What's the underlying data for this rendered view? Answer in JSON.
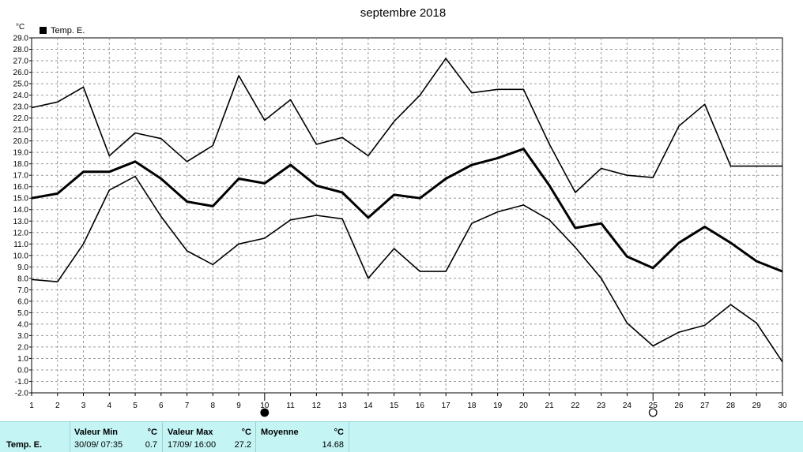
{
  "chart_data": {
    "type": "line",
    "title": "septembre 2018",
    "y_unit": "°C",
    "ylim": [
      -2.0,
      29.0
    ],
    "y_step": 1.0,
    "grid": true,
    "legend_position": "top-left",
    "legend": [
      "Temp. E."
    ],
    "x": [
      1,
      2,
      3,
      4,
      5,
      6,
      7,
      8,
      9,
      10,
      11,
      12,
      13,
      14,
      15,
      16,
      17,
      18,
      19,
      20,
      21,
      22,
      23,
      24,
      25,
      26,
      27,
      28,
      29,
      30
    ],
    "series": [
      {
        "role": "max",
        "values": [
          22.9,
          23.4,
          24.7,
          18.7,
          20.7,
          20.2,
          18.2,
          19.6,
          25.7,
          21.8,
          23.6,
          19.7,
          20.3,
          18.7,
          21.7,
          24.0,
          27.2,
          24.2,
          24.5,
          24.5,
          19.7,
          15.5,
          17.6,
          17.0,
          16.8,
          21.3,
          23.2,
          17.8,
          17.8,
          17.8
        ]
      },
      {
        "role": "mean",
        "name": "Temp. E.",
        "values": [
          15.0,
          15.4,
          17.3,
          17.3,
          18.2,
          16.7,
          14.7,
          14.3,
          16.7,
          16.3,
          17.9,
          16.1,
          15.5,
          13.3,
          15.3,
          15.0,
          16.7,
          17.9,
          18.5,
          19.3,
          16.1,
          12.4,
          12.8,
          9.9,
          8.9,
          11.1,
          12.5,
          11.1,
          9.5,
          8.6
        ]
      },
      {
        "role": "min",
        "values": [
          7.9,
          7.7,
          11.0,
          15.7,
          16.9,
          13.4,
          10.4,
          9.2,
          11.0,
          11.5,
          13.1,
          13.5,
          13.2,
          8.0,
          10.6,
          8.6,
          8.6,
          12.8,
          13.8,
          14.4,
          13.1,
          10.7,
          8.0,
          4.1,
          2.1,
          3.3,
          3.9,
          5.7,
          4.1,
          0.7
        ]
      }
    ],
    "moon_phases": [
      {
        "day": 10,
        "phase": "new-moon"
      },
      {
        "day": 25,
        "phase": "full-moon"
      }
    ]
  },
  "stats": {
    "row_label": "Temp. E.",
    "min": {
      "header": "Valeur Min",
      "unit": "°C",
      "date": "30/09/ 07:35",
      "value": "0.7"
    },
    "max": {
      "header": "Valeur Max",
      "unit": "°C",
      "date": "17/09/ 16:00",
      "value": "27.2"
    },
    "mean": {
      "header": "Moyenne",
      "unit": "°C",
      "value": "14.68"
    }
  }
}
